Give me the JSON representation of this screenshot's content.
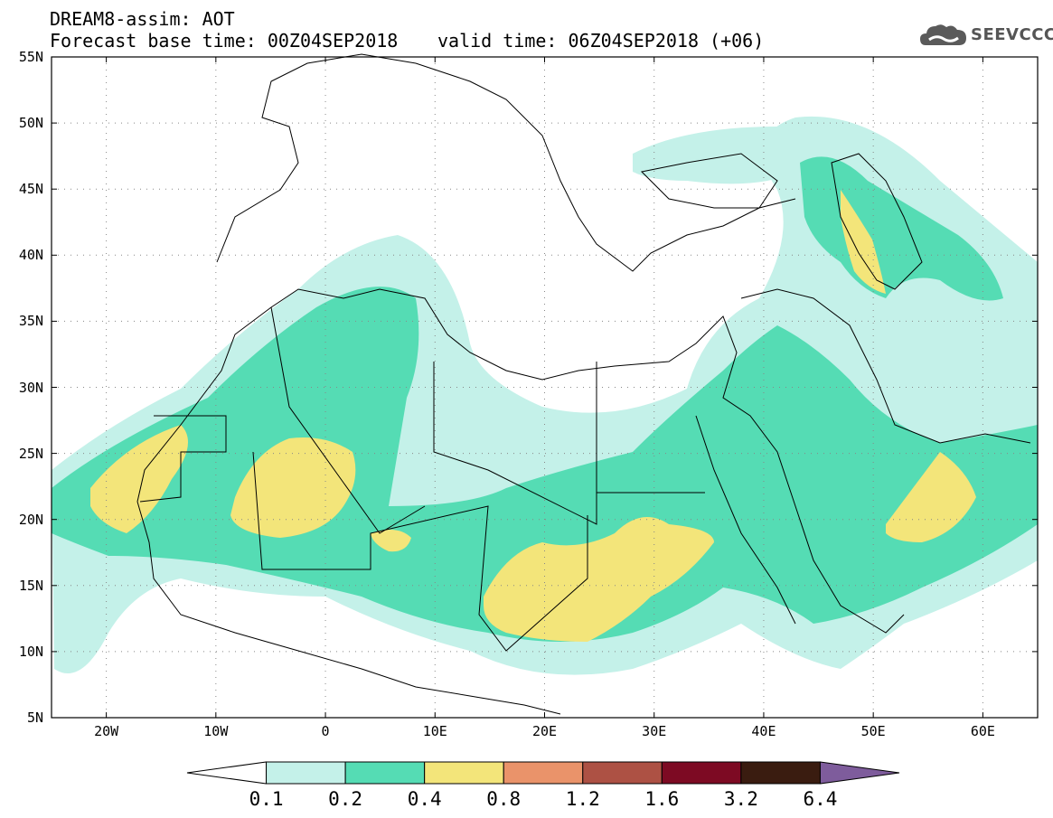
{
  "title": {
    "line1": "DREAM8-assim: AOT",
    "line2": "Forecast base time: 00Z04SEP2018",
    "valid": "valid time: 06Z04SEP2018 (+06)"
  },
  "logo": {
    "text": "SEEVCCC",
    "icon": "cloud-icon",
    "color": "#555555"
  },
  "map": {
    "lon_range": [
      -25,
      65
    ],
    "lat_range": [
      5,
      55
    ],
    "grid": "dotted",
    "lat_labels": [
      "55N",
      "50N",
      "45N",
      "40N",
      "35N",
      "30N",
      "25N",
      "20N",
      "15N",
      "10N",
      "5N"
    ],
    "lon_labels": [
      "20W",
      "10W",
      "0",
      "10E",
      "20E",
      "30E",
      "40E",
      "50E",
      "60E"
    ]
  },
  "colorbar": {
    "levels": [
      "0.1",
      "0.2",
      "0.4",
      "0.8",
      "1.2",
      "1.6",
      "3.2",
      "6.4"
    ],
    "colors": [
      "#ffffff",
      "#c4f1e9",
      "#55dcb4",
      "#f3e57a",
      "#ea936a",
      "#ad5144",
      "#7d0a23",
      "#3a1c10",
      "#7e5c9c"
    ]
  }
}
